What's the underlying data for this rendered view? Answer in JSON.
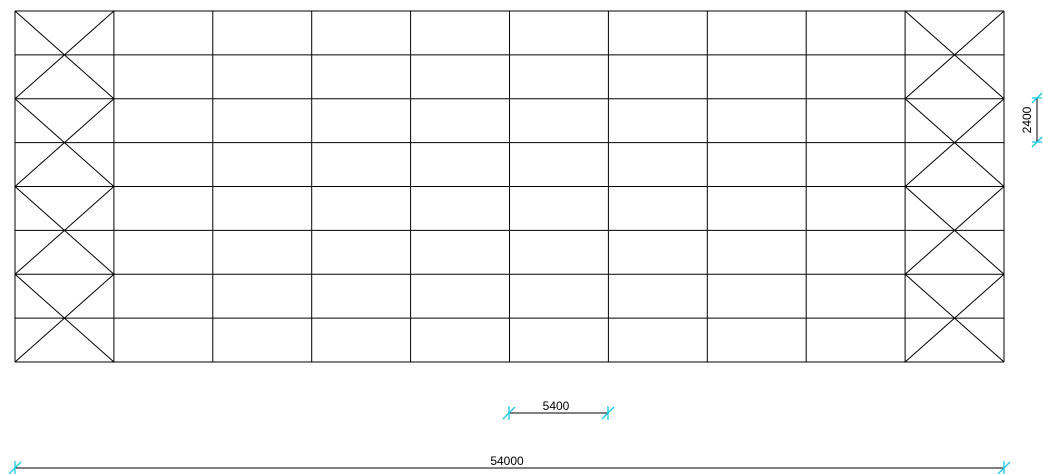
{
  "drawing": {
    "grid": {
      "columns": 10,
      "rows": 8
    },
    "braced_columns": [
      0,
      9
    ],
    "colors": {
      "line": "#000000",
      "dimension_tick": "#19c9e6",
      "background": "#ffffff"
    }
  },
  "dimensions": {
    "bay_width": "5400",
    "total_width": "54000",
    "row_height": "2400"
  }
}
